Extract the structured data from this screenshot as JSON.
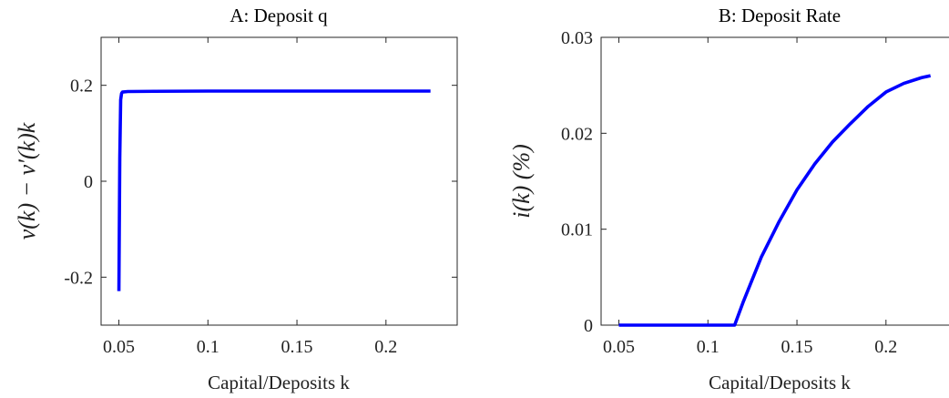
{
  "chart_data": [
    {
      "type": "line",
      "title": "A: Deposit q",
      "xlabel": "Capital/Deposits k",
      "ylabel": "v(k) − v′(k)k",
      "xlim": [
        0.04,
        0.24
      ],
      "ylim": [
        -0.3,
        0.3
      ],
      "xticks": [
        0.05,
        0.1,
        0.15,
        0.2
      ],
      "xtick_labels": [
        "0.05",
        "0.1",
        "0.15",
        "0.2"
      ],
      "yticks": [
        -0.2,
        0,
        0.2
      ],
      "ytick_labels": [
        "-0.2",
        "0",
        "0.2"
      ],
      "grid": false,
      "series": [
        {
          "color": "#0000ff",
          "x": [
            0.05,
            0.0505,
            0.051,
            0.0515,
            0.052,
            0.055,
            0.07,
            0.1,
            0.15,
            0.2,
            0.225
          ],
          "y": [
            -0.229,
            0.05,
            0.17,
            0.183,
            0.186,
            0.187,
            0.1875,
            0.188,
            0.188,
            0.188,
            0.188
          ]
        }
      ]
    },
    {
      "type": "line",
      "title": "B: Deposit Rate",
      "xlabel": "Capital/Deposits k",
      "ylabel": "i(k) (%)",
      "xlim": [
        0.04,
        0.24
      ],
      "ylim": [
        0,
        0.03
      ],
      "xticks": [
        0.05,
        0.1,
        0.15,
        0.2
      ],
      "xtick_labels": [
        "0.05",
        "0.1",
        "0.15",
        "0.2"
      ],
      "yticks": [
        0,
        0.01,
        0.02,
        0.03
      ],
      "ytick_labels": [
        "0",
        "0.01",
        "0.02",
        "0.03"
      ],
      "grid": false,
      "series": [
        {
          "color": "#0000ff",
          "x": [
            0.05,
            0.1,
            0.115,
            0.12,
            0.125,
            0.13,
            0.14,
            0.15,
            0.16,
            0.17,
            0.18,
            0.19,
            0.2,
            0.21,
            0.22,
            0.225
          ],
          "y": [
            0,
            0,
            0,
            0.0025,
            0.0048,
            0.0071,
            0.0108,
            0.0141,
            0.0168,
            0.0191,
            0.021,
            0.0228,
            0.0243,
            0.0252,
            0.0258,
            0.026
          ]
        }
      ]
    }
  ]
}
